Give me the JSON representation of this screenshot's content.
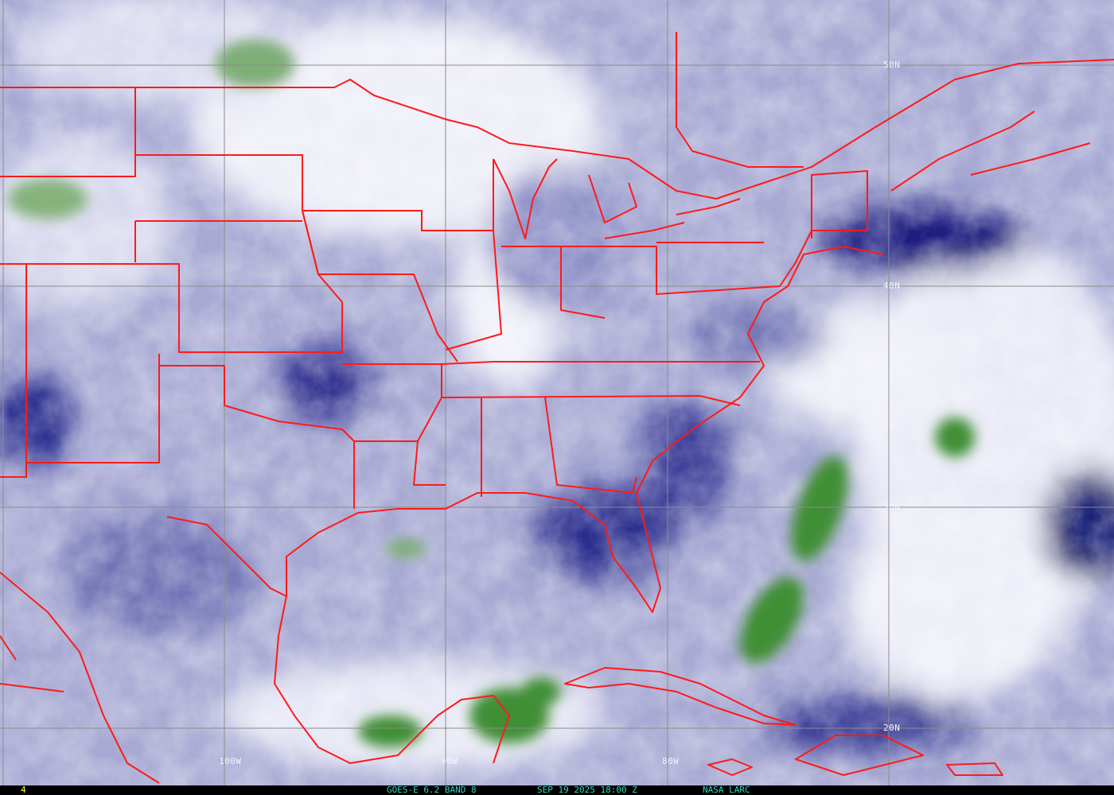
{
  "image": {
    "type": "satellite water vapor imagery",
    "overlay_color": "#ff1a1a",
    "grid_color": "#8c8c8c",
    "moist_color": "#f2f2fa",
    "dry_color": "#0e1070",
    "cloud_color": "#3f8f34"
  },
  "grid_labels": {
    "lat": [
      "50N",
      "40N",
      "30N",
      "20N"
    ],
    "lon": [
      "100W",
      "90W",
      "80W"
    ]
  },
  "status_bar": {
    "frame_number": "4",
    "product": "GOES-E 6.2 BAND 8",
    "datetime": "SEP 19 2025 18:00 Z",
    "source": "NASA LARC"
  }
}
